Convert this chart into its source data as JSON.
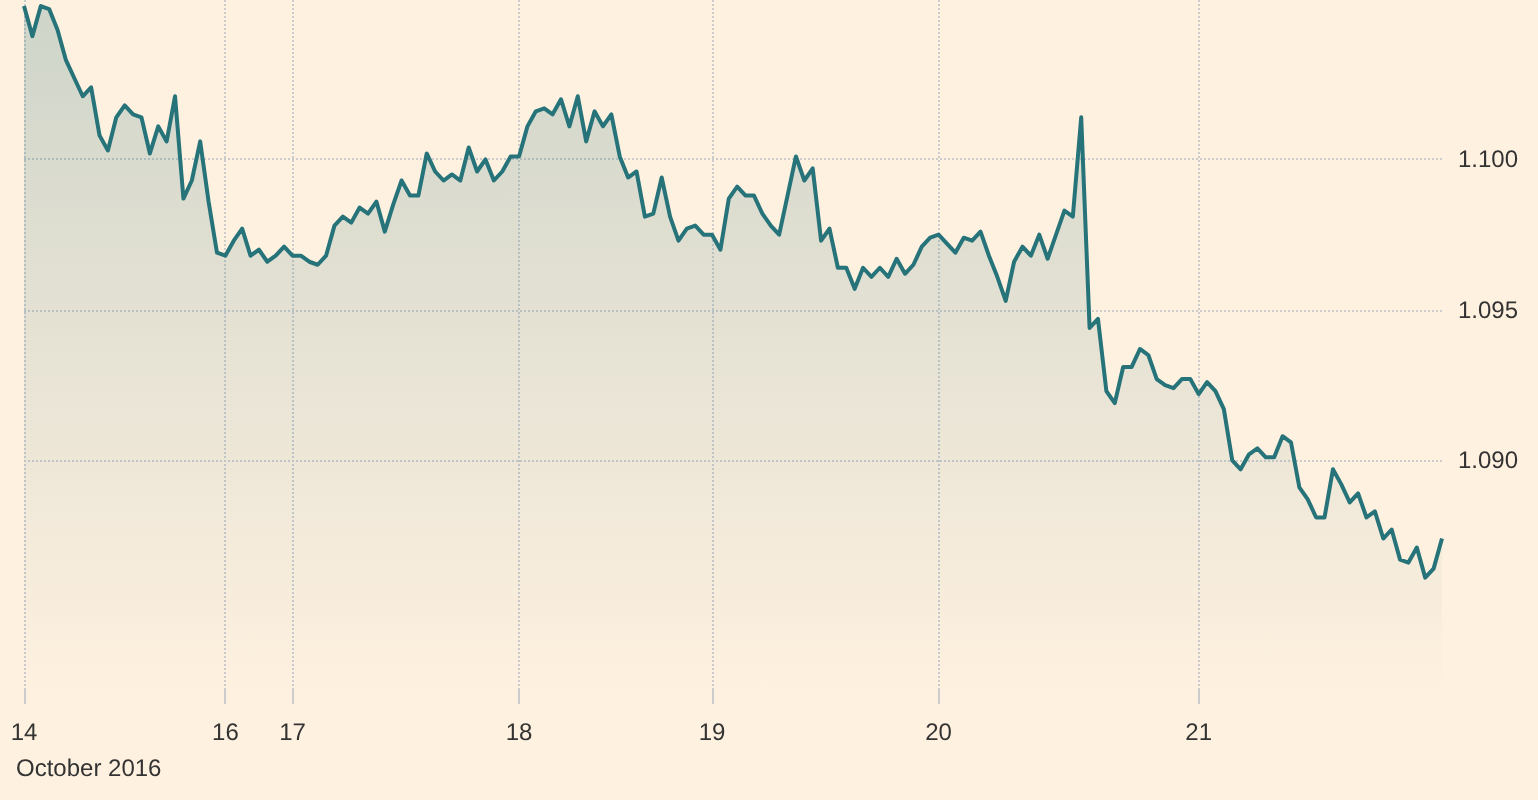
{
  "chart_data": {
    "type": "area",
    "xlabel": "October 2016",
    "categories": [
      "14",
      null,
      null,
      null,
      null,
      null,
      null,
      null,
      null,
      null,
      null,
      null,
      null,
      null,
      null,
      null,
      null,
      null,
      null,
      null,
      null,
      null,
      null,
      null,
      "16",
      null,
      null,
      null,
      null,
      null,
      null,
      null,
      "17",
      null,
      null,
      null,
      null,
      null,
      null,
      null,
      null,
      null,
      null,
      null,
      null,
      null,
      null,
      null,
      null,
      null,
      null,
      null,
      null,
      null,
      null,
      null,
      null,
      null,
      null,
      "18",
      null,
      null,
      null,
      null,
      null,
      null,
      null,
      null,
      null,
      null,
      null,
      null,
      null,
      null,
      null,
      null,
      null,
      null,
      null,
      null,
      null,
      null,
      "19",
      null,
      null,
      null,
      null,
      null,
      null,
      null,
      null,
      null,
      null,
      null,
      null,
      null,
      null,
      null,
      null,
      null,
      null,
      null,
      null,
      null,
      null,
      null,
      null,
      null,
      null,
      "20",
      null,
      null,
      null,
      null,
      null,
      null,
      null,
      null,
      null,
      null,
      null,
      null,
      null,
      null,
      null,
      null,
      null,
      null,
      null,
      null,
      null,
      null,
      null,
      null,
      null,
      null,
      null,
      null,
      null,
      null,
      "21",
      null,
      null,
      null,
      null,
      null,
      null,
      null,
      null,
      null,
      null,
      null,
      null,
      null,
      null,
      null,
      null,
      null,
      null,
      null,
      null,
      null,
      null,
      null,
      null,
      null,
      null,
      null,
      null,
      null
    ],
    "series": [
      {
        "color": "#26737a",
        "values": [
          1.1051,
          1.1041,
          1.1051,
          1.105,
          1.1043,
          1.1033,
          1.1027,
          1.1021,
          1.1024,
          1.1008,
          1.1003,
          1.1014,
          1.1018,
          1.1015,
          1.1014,
          1.1002,
          1.1011,
          1.1006,
          1.1021,
          1.0987,
          1.0993,
          1.1006,
          1.0986,
          1.0969,
          1.0968,
          1.0973,
          1.0977,
          1.0968,
          1.097,
          1.0966,
          1.0968,
          1.0971,
          1.0968,
          1.0968,
          1.0966,
          1.0965,
          1.0968,
          1.0978,
          1.0981,
          1.0979,
          1.0984,
          1.0982,
          1.0986,
          1.0976,
          1.0985,
          1.0993,
          1.0988,
          1.0988,
          1.1002,
          1.0996,
          1.0993,
          1.0995,
          1.0993,
          1.1004,
          1.0996,
          1.1,
          1.0993,
          1.0996,
          1.1001,
          1.1001,
          1.1011,
          1.1016,
          1.1017,
          1.1015,
          1.102,
          1.1011,
          1.1021,
          1.1006,
          1.1016,
          1.1011,
          1.1015,
          1.1001,
          1.0994,
          1.0996,
          1.0981,
          1.0982,
          1.0994,
          1.0981,
          1.0973,
          1.0977,
          1.0978,
          1.0975,
          1.0975,
          1.097,
          1.0987,
          1.0991,
          1.0988,
          1.0988,
          1.0982,
          1.0978,
          1.0975,
          1.0988,
          1.1001,
          1.0993,
          1.0997,
          1.0973,
          1.0977,
          1.0964,
          1.0964,
          1.0957,
          1.0964,
          1.0961,
          1.0964,
          1.0961,
          1.0967,
          1.0962,
          1.0965,
          1.0971,
          1.0974,
          1.0975,
          1.0972,
          1.0969,
          1.0974,
          1.0973,
          1.0976,
          1.0968,
          1.0961,
          1.0953,
          1.0966,
          1.0971,
          1.0968,
          1.0975,
          1.0967,
          1.0975,
          1.0983,
          1.0981,
          1.1014,
          1.0944,
          1.0947,
          1.0923,
          1.0919,
          1.0931,
          1.0931,
          1.0937,
          1.0935,
          1.0927,
          1.0925,
          1.0924,
          1.0927,
          1.0927,
          1.0922,
          1.0926,
          1.0923,
          1.0917,
          1.09,
          1.0897,
          1.0902,
          1.0904,
          1.0901,
          1.0901,
          1.0908,
          1.0906,
          1.0891,
          1.0887,
          1.0881,
          1.0881,
          1.0897,
          1.0892,
          1.0886,
          1.0889,
          1.0881,
          1.0883,
          1.0874,
          1.0877,
          1.0867,
          1.0866,
          1.0871,
          1.0861,
          1.0864,
          1.0874
        ]
      }
    ],
    "ylim": [
      1.0819,
      1.1053
    ],
    "yticks": [
      {
        "value": 1.09,
        "label": "1.090"
      },
      {
        "value": 1.095,
        "label": "1.095"
      },
      {
        "value": 1.1,
        "label": "1.100"
      }
    ],
    "grid": true,
    "marker": "none",
    "line_style": "solid"
  }
}
